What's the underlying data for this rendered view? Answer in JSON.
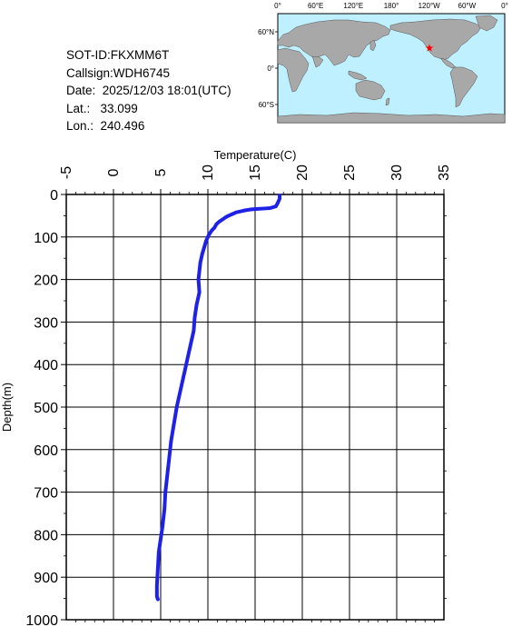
{
  "info": {
    "sot_id": "SOT-ID:FKXMM6T",
    "callsign": "Callsign:WDH6745",
    "date": "Date:  2025/12/03 18:01(UTC)",
    "lat": "Lat.:   33.099",
    "lon": "Lon.:  240.496"
  },
  "map": {
    "lon_labels": [
      "0°",
      "60°E",
      "120°E",
      "180°",
      "120°W",
      "60°W",
      "0°"
    ],
    "lat_labels": [
      "60°N",
      "0°",
      "60°S"
    ],
    "ocean_color": "#bff0ff",
    "land_color": "#a8a8a8",
    "marker_color": "#ff0000",
    "marker_icon": "star-icon",
    "marker_lat": 33.099,
    "marker_lon": 240.496
  },
  "chart_data": {
    "type": "line",
    "xlabel": "Temperature(C)",
    "ylabel": "Depth(m)",
    "xlim": [
      -5,
      35
    ],
    "ylim": [
      0,
      1000
    ],
    "y_inverted": true,
    "x_axis_position": "top",
    "grid": true,
    "x_ticks": [
      -5,
      0,
      5,
      10,
      15,
      20,
      25,
      30,
      35
    ],
    "y_ticks": [
      0,
      100,
      200,
      300,
      400,
      500,
      600,
      700,
      800,
      900,
      1000
    ],
    "series": [
      {
        "color": "#1e22e6",
        "points": [
          [
            17.6,
            2
          ],
          [
            17.6,
            10
          ],
          [
            17.4,
            20
          ],
          [
            17.2,
            28
          ],
          [
            16.6,
            32
          ],
          [
            16.0,
            33
          ],
          [
            15.3,
            34
          ],
          [
            14.6,
            35
          ],
          [
            13.8,
            38
          ],
          [
            13.0,
            42
          ],
          [
            12.5,
            47
          ],
          [
            12.0,
            52
          ],
          [
            11.6,
            58
          ],
          [
            11.2,
            64
          ],
          [
            10.9,
            70
          ],
          [
            10.7,
            78
          ],
          [
            10.4,
            85
          ],
          [
            10.1,
            95
          ],
          [
            9.8,
            110
          ],
          [
            9.6,
            125
          ],
          [
            9.4,
            140
          ],
          [
            9.2,
            160
          ],
          [
            9.1,
            180
          ],
          [
            9.0,
            200
          ],
          [
            9.1,
            230
          ],
          [
            8.8,
            260
          ],
          [
            8.6,
            290
          ],
          [
            8.5,
            320
          ],
          [
            8.2,
            350
          ],
          [
            7.9,
            380
          ],
          [
            7.6,
            410
          ],
          [
            7.3,
            440
          ],
          [
            7.0,
            470
          ],
          [
            6.7,
            500
          ],
          [
            6.4,
            540
          ],
          [
            6.1,
            580
          ],
          [
            5.9,
            620
          ],
          [
            5.7,
            660
          ],
          [
            5.5,
            700
          ],
          [
            5.4,
            740
          ],
          [
            5.2,
            780
          ],
          [
            5.0,
            810
          ],
          [
            4.8,
            840
          ],
          [
            4.7,
            880
          ],
          [
            4.6,
            920
          ],
          [
            4.6,
            945
          ],
          [
            4.7,
            952
          ]
        ]
      }
    ]
  }
}
